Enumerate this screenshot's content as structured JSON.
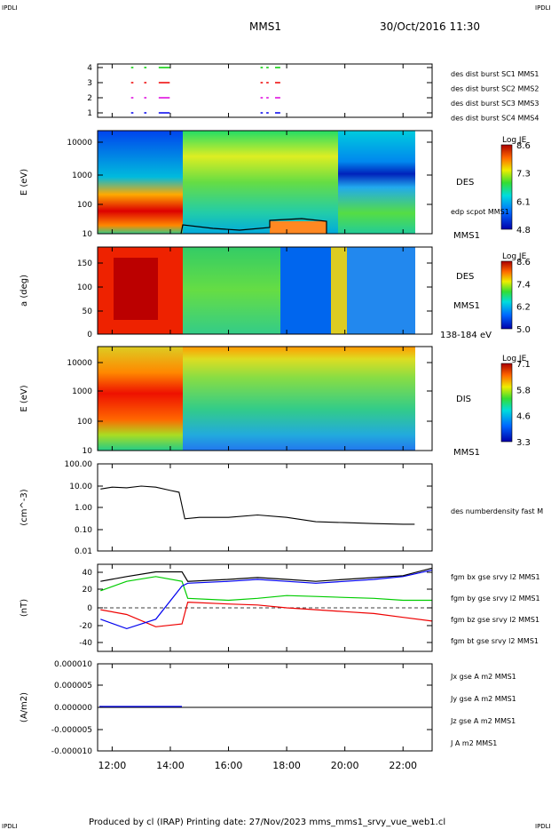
{
  "corner": {
    "tl": "IPDLI",
    "tr": "IPDLI",
    "bl": "IPDLI",
    "br": "IPDLI"
  },
  "header": {
    "mission": "MMS1",
    "datetime": "30/Oct/2016 11:30"
  },
  "footer": {
    "text": "Produced by cl (IRAP)   Printing date: 27/Nov/2023   mms_mms1_srvy_vue_web1.cl"
  },
  "colors": {
    "blue": "#0000ee",
    "red": "#ee0000",
    "green": "#00cc00",
    "magenta": "#dd00dd",
    "black": "#000000"
  },
  "chart_data": [
    {
      "type": "scatter",
      "id": "burst",
      "yticks": [
        "4",
        "3",
        "2",
        "1"
      ],
      "legend": [
        {
          "name": "des dist burst SC1 MMS1",
          "color": "#0000ee"
        },
        {
          "name": "des dist burst SC2 MMS2",
          "color": "#dd00dd"
        },
        {
          "name": "des dist burst SC3 MMS3",
          "color": "#ee0000"
        },
        {
          "name": "des dist burst SC4 MMS4",
          "color": "#00cc00"
        }
      ],
      "intervals_hours": [
        [
          12.65,
          12.7
        ],
        [
          13.1,
          13.15
        ],
        [
          13.6,
          13.95
        ],
        [
          17.1,
          17.15
        ],
        [
          17.3,
          17.35
        ],
        [
          17.6,
          17.75
        ]
      ]
    },
    {
      "type": "heatmap",
      "id": "des_energy",
      "ylabel": "E (eV)",
      "yticks": [
        "10000",
        "1000",
        "100",
        "10"
      ],
      "side_label": "DES",
      "side_label2": "edp scpot MMS1",
      "side_label3": "MMS1",
      "colorbar": {
        "title": "Log JE",
        "ticks": [
          "8.6",
          "7.3",
          "6.1",
          "4.8"
        ]
      }
    },
    {
      "type": "heatmap",
      "id": "des_pitch",
      "ylabel": "a (deg)",
      "yticks": [
        "150",
        "100",
        "50",
        "0"
      ],
      "side_label": "DES",
      "side_label2": "MMS1",
      "side_label3": "138-184 eV",
      "colorbar": {
        "title": "Log JE",
        "ticks": [
          "8.6",
          "7.4",
          "6.2",
          "5.0"
        ]
      }
    },
    {
      "type": "heatmap",
      "id": "dis_energy",
      "ylabel": "E (eV)",
      "yticks": [
        "10000",
        "1000",
        "100",
        "10"
      ],
      "side_label": "DIS",
      "side_label2": "MMS1",
      "colorbar": {
        "title": "Log JE",
        "ticks": [
          "7.1",
          "5.8",
          "4.6",
          "3.3"
        ]
      }
    },
    {
      "type": "line",
      "id": "density",
      "ylabel": "(cm^-3)",
      "yticks": [
        "100.00",
        "10.00",
        "1.00",
        "0.10",
        "0.01"
      ],
      "legend": [
        {
          "name": "des numberdensity fast M",
          "color": "#000000"
        }
      ],
      "x_hours": [
        11.6,
        12.0,
        12.5,
        13.0,
        13.5,
        14.0,
        14.3,
        14.5,
        15.0,
        16.0,
        17.0,
        18.0,
        19.0,
        20.0,
        21.0,
        22.0,
        22.4
      ],
      "values": [
        7.0,
        8.5,
        8.0,
        9.5,
        8.5,
        6.0,
        5.0,
        0.3,
        0.35,
        0.35,
        0.45,
        0.35,
        0.22,
        0.2,
        0.18,
        0.17,
        0.17
      ]
    },
    {
      "type": "line",
      "id": "fgm",
      "ylabel": "(nT)",
      "yticks": [
        "40",
        "20",
        "0",
        "-20",
        "-40"
      ],
      "ylim": [
        -44,
        48
      ],
      "legend": [
        {
          "name": "fgm bx gse srvy l2 MMS1",
          "color": "#ee0000"
        },
        {
          "name": "fgm by gse srvy l2 MMS1",
          "color": "#00cc00"
        },
        {
          "name": "fgm bz gse srvy l2 MMS1",
          "color": "#0000ee"
        },
        {
          "name": "fgm bt gse srvy l2 MMS1",
          "color": "#000000"
        }
      ],
      "x_hours": [
        11.6,
        12.5,
        13.5,
        14.4,
        14.6,
        16.0,
        17.0,
        18.0,
        19.0,
        20.0,
        21.0,
        22.0,
        23.0
      ],
      "series": [
        {
          "name": "fgm bx gse srvy l2 MMS1",
          "values": [
            0,
            -5,
            -18,
            -15,
            8,
            6,
            5,
            2,
            0,
            -2,
            -4,
            -8,
            -12
          ]
        },
        {
          "name": "fgm by gse srvy l2 MMS1",
          "values": [
            20,
            30,
            35,
            30,
            12,
            10,
            12,
            15,
            14,
            13,
            12,
            10,
            10
          ]
        },
        {
          "name": "fgm bz gse srvy l2 MMS1",
          "values": [
            -10,
            -20,
            -10,
            25,
            28,
            30,
            32,
            30,
            28,
            30,
            32,
            35,
            42
          ]
        },
        {
          "name": "fgm bt gse srvy l2 MMS1",
          "values": [
            30,
            35,
            40,
            40,
            30,
            32,
            34,
            32,
            30,
            32,
            34,
            36,
            44
          ]
        }
      ]
    },
    {
      "type": "line",
      "id": "current",
      "ylabel": "(A/m2)",
      "yticks": [
        "0.000010",
        "0.000005",
        "0.000000",
        "-0.000005",
        "-0.000010"
      ],
      "ylim": [
        -1e-05,
        1e-05
      ],
      "legend": [
        {
          "name": "Jx gse A m2 MMS1",
          "color": "#ee0000"
        },
        {
          "name": "Jy gse A m2 MMS1",
          "color": "#00cc00"
        },
        {
          "name": "Jz gse A m2 MMS1",
          "color": "#0000ee"
        },
        {
          "name": "J A m2 MMS1",
          "color": "#000000"
        }
      ]
    }
  ],
  "xaxis": {
    "ticks": [
      "12:00",
      "14:00",
      "16:00",
      "18:00",
      "20:00",
      "22:00"
    ],
    "hours": [
      12,
      14,
      16,
      18,
      20,
      22
    ],
    "range": [
      11.5,
      23.0
    ]
  }
}
